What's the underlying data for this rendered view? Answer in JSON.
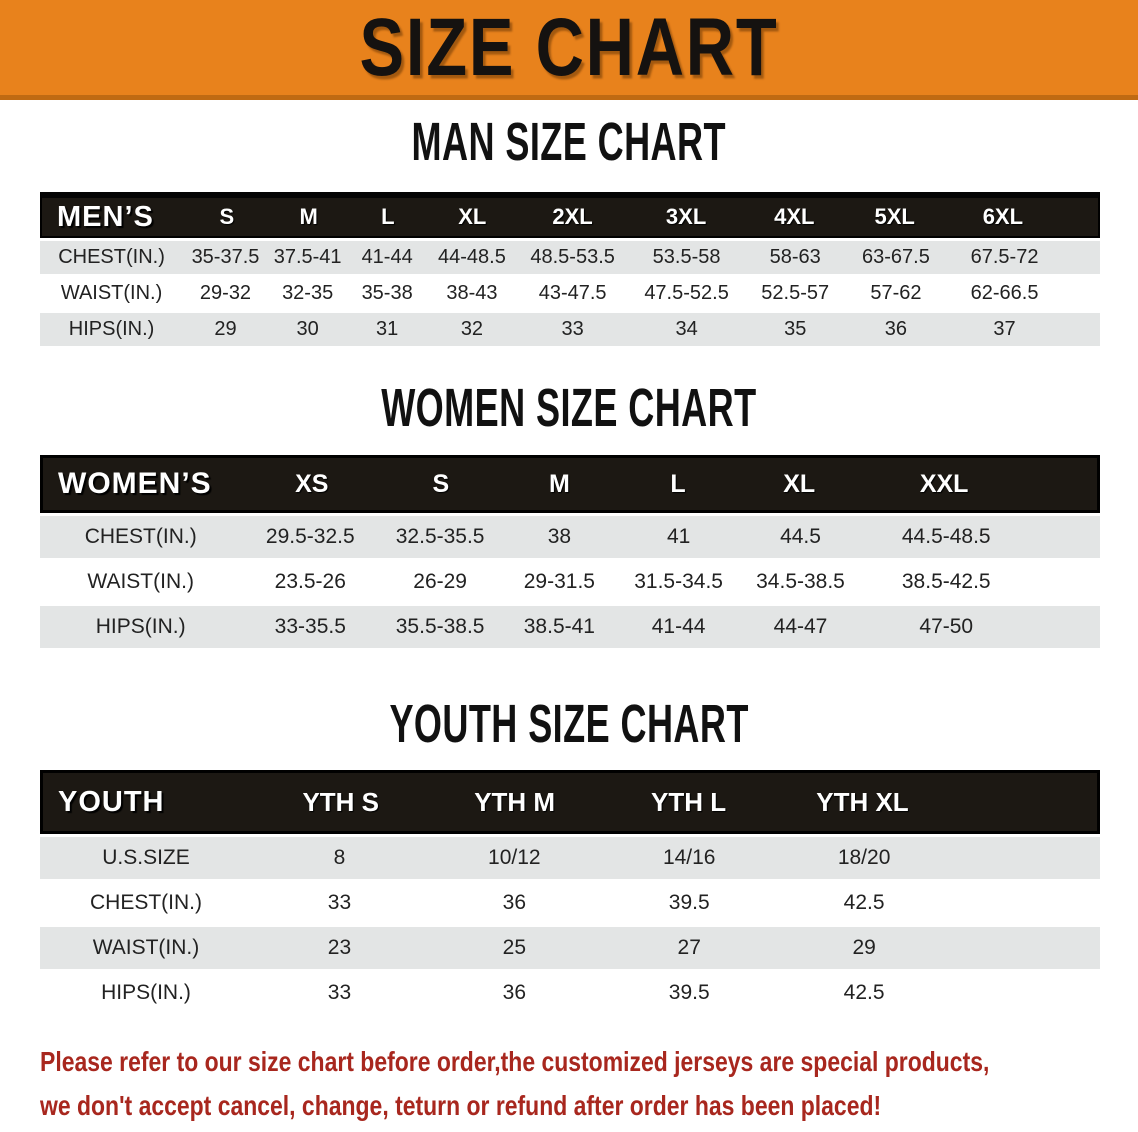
{
  "banner": {
    "title": "SIZE CHART"
  },
  "sections": [
    {
      "heading": "MAN SIZE CHART",
      "table": {
        "header_label": "MEN’S",
        "columns": [
          "S",
          "M",
          "L",
          "XL",
          "2XL",
          "3XL",
          "4XL",
          "5XL",
          "6XL"
        ],
        "rows": [
          {
            "label": "CHEST(IN.)",
            "values": [
              "35-37.5",
              "37.5-41",
              "41-44",
              "44-48.5",
              "48.5-53.5",
              "53.5-58",
              "58-63",
              "63-67.5",
              "67.5-72"
            ]
          },
          {
            "label": "WAIST(IN.)",
            "values": [
              "29-32",
              "32-35",
              "35-38",
              "38-43",
              "43-47.5",
              "47.5-52.5",
              "52.5-57",
              "57-62",
              "62-66.5"
            ]
          },
          {
            "label": "HIPS(IN.)",
            "values": [
              "29",
              "30",
              "31",
              "32",
              "33",
              "34",
              "35",
              "36",
              "37"
            ]
          }
        ]
      }
    },
    {
      "heading": "WOMEN SIZE CHART",
      "table": {
        "header_label": "WOMEN’S",
        "columns": [
          "XS",
          "S",
          "M",
          "L",
          "XL",
          "XXL"
        ],
        "rows": [
          {
            "label": "CHEST(IN.)",
            "values": [
              "29.5-32.5",
              "32.5-35.5",
              "38",
              "41",
              "44.5",
              "44.5-48.5"
            ]
          },
          {
            "label": "WAIST(IN.)",
            "values": [
              "23.5-26",
              "26-29",
              "29-31.5",
              "31.5-34.5",
              "34.5-38.5",
              "38.5-42.5"
            ]
          },
          {
            "label": "HIPS(IN.)",
            "values": [
              "33-35.5",
              "35.5-38.5",
              "38.5-41",
              "41-44",
              "44-47",
              "47-50"
            ]
          }
        ]
      }
    },
    {
      "heading": "YOUTH SIZE CHART",
      "table": {
        "header_label": "YOUTH",
        "columns": [
          "YTH S",
          "YTH M",
          "YTH L",
          "YTH XL"
        ],
        "rows": [
          {
            "label": "U.S.SIZE",
            "values": [
              "8",
              "10/12",
              "14/16",
              "18/20"
            ]
          },
          {
            "label": "CHEST(IN.)",
            "values": [
              "33",
              "36",
              "39.5",
              "42.5"
            ]
          },
          {
            "label": "WAIST(IN.)",
            "values": [
              "23",
              "25",
              "27",
              "29"
            ]
          },
          {
            "label": "HIPS(IN.)",
            "values": [
              "33",
              "36",
              "39.5",
              "42.5"
            ]
          }
        ]
      }
    }
  ],
  "footer": {
    "line1": "Please refer to our size chart before order,the customized jerseys are special products,",
    "line2": "we don't accept cancel, change, teturn or refund after order has been placed!"
  },
  "colors": {
    "banner_bg": "#E8821C",
    "banner_border": "#BF6A12",
    "table_header_bg": "#1C1813",
    "row_gray": "#E3E5E5",
    "notice_red": "#A8271E",
    "heading_text": "#111111"
  }
}
